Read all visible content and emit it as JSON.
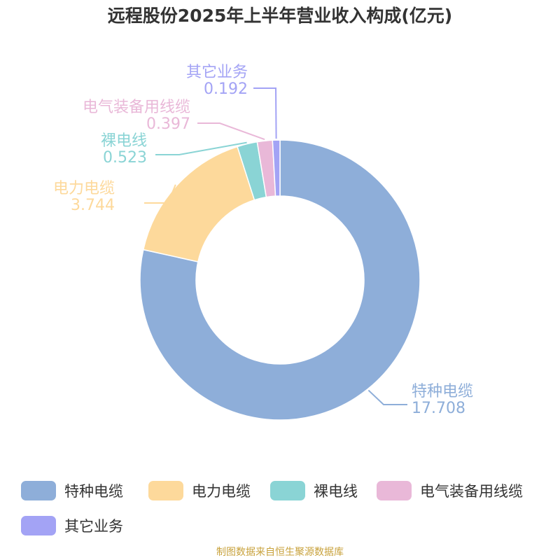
{
  "chart_data": {
    "type": "pie",
    "title": "远程股份2025年上半年营业收入构成(亿元)",
    "categories": [
      "特种电缆",
      "电力电缆",
      "裸电线",
      "电气装备用线缆",
      "其它业务"
    ],
    "values": [
      17.708,
      3.744,
      0.523,
      0.397,
      0.192
    ],
    "value_labels": [
      "17.708",
      "3.744",
      "0.523",
      "0.397",
      "0.192"
    ],
    "colors": [
      "#8eaed9",
      "#fdd99b",
      "#8ad4d5",
      "#e9b8d8",
      "#a3a3f5"
    ],
    "legend": {
      "position": "bottom"
    }
  },
  "source_note": "制图数据来自恒生聚源数据库"
}
